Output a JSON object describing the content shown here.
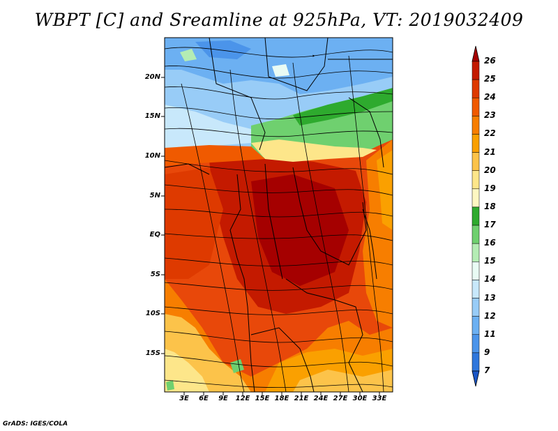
{
  "title": "WBPT [C] and Sreamline at 925hPa, VT: 2019032409",
  "credit": "GrADS: IGES/COLA",
  "y_ticks": [
    "20N",
    "15N",
    "10N",
    "5N",
    "EQ",
    "5S",
    "10S",
    "15S"
  ],
  "x_ticks": [
    "3E",
    "6E",
    "9E",
    "12E",
    "15E",
    "18E",
    "21E",
    "24E",
    "27E",
    "30E",
    "33E"
  ],
  "colorbar": {
    "labels": [
      "26",
      "25",
      "24",
      "23",
      "22",
      "21",
      "20",
      "19",
      "18",
      "17",
      "16",
      "15",
      "14",
      "13",
      "12",
      "11",
      "9",
      "7"
    ],
    "colors": [
      "#a50000",
      "#c41a00",
      "#de3a00",
      "#f05a00",
      "#f77e00",
      "#faa000",
      "#fcc34a",
      "#fde68a",
      "#fdf7c2",
      "#2eaa2e",
      "#6fd06f",
      "#b4ecb4",
      "#e9fbf4",
      "#c8e8fb",
      "#98ccf7",
      "#6cb0f2",
      "#4b94ea",
      "#2f77dc",
      "#1a56c6"
    ]
  }
}
